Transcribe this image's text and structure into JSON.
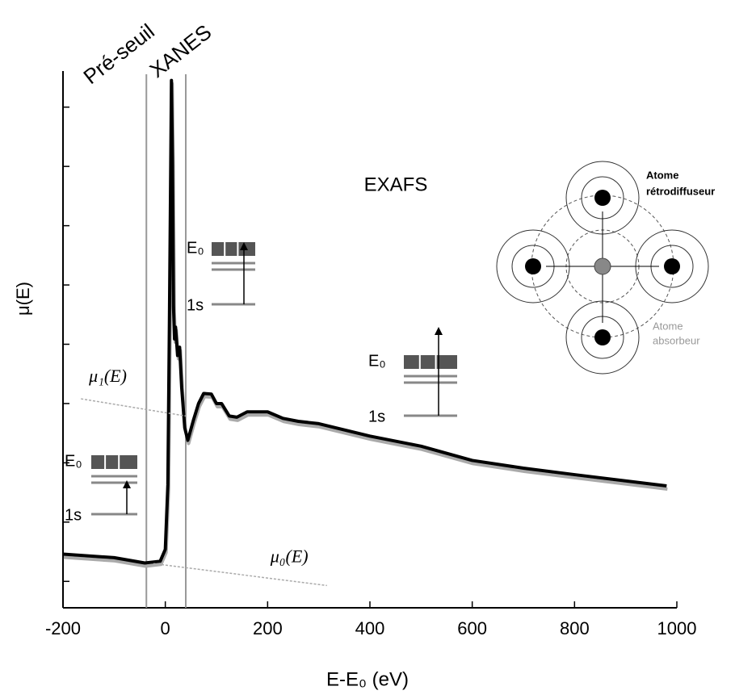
{
  "chart_data": {
    "type": "line",
    "x_label": "E-E₀ (eV)",
    "y_label": "μ(E)",
    "xlim": [
      -200,
      1000
    ],
    "xticks": [
      -200,
      0,
      200,
      400,
      600,
      800,
      1000
    ],
    "ylim": [
      0.5,
      9.5
    ],
    "yticks": [
      1,
      2,
      3,
      4,
      5,
      6,
      7,
      8,
      9
    ],
    "ytick_labels": false,
    "series": [
      {
        "color": "#000000",
        "width": 4,
        "dashed": false,
        "x": [
          -200,
          -100,
          -40,
          -10,
          0,
          5,
          8,
          10,
          12,
          14,
          16,
          18,
          20,
          24,
          28,
          32,
          38,
          44,
          55,
          65,
          75,
          90,
          100,
          110,
          125,
          140,
          160,
          200,
          230,
          260,
          300,
          400,
          500,
          600,
          700,
          800,
          980
        ],
        "values": [
          1.46,
          1.4,
          1.31,
          1.34,
          1.54,
          2.63,
          5.36,
          7.4,
          9.45,
          8.08,
          5.63,
          5.09,
          5.29,
          4.81,
          4.95,
          4.27,
          3.59,
          3.38,
          3.72,
          4.0,
          4.17,
          4.16,
          4.0,
          4.0,
          3.79,
          3.77,
          3.86,
          3.86,
          3.75,
          3.7,
          3.66,
          3.45,
          3.28,
          3.04,
          2.91,
          2.8,
          2.61
        ]
      },
      {
        "name": "μ₁(E)",
        "color": "#aaaaaa",
        "width": 1.5,
        "dashed": true,
        "x": [
          -165,
          40
        ],
        "values": [
          4.08,
          3.79
        ]
      },
      {
        "name": "μ₀(E)",
        "color": "#aaaaaa",
        "width": 1.5,
        "dashed": true,
        "x": [
          -23,
          316
        ],
        "values": [
          1.3,
          0.93
        ]
      }
    ],
    "region_bounds": [
      -37,
      40
    ],
    "region_labels": [
      "Pré-seuil",
      "XANES",
      "EXAFS"
    ],
    "level_diagrams": [
      {
        "top": "E₀",
        "bottom": "1s"
      },
      {
        "top": "E₀",
        "bottom": "1s"
      },
      {
        "top": "E₀",
        "bottom": "1s"
      }
    ],
    "scattering_diagram": {
      "backscatterer": [
        "Atome",
        "rétrodiffuseur"
      ],
      "absorber": [
        "Atome",
        "absorbeur"
      ]
    }
  }
}
